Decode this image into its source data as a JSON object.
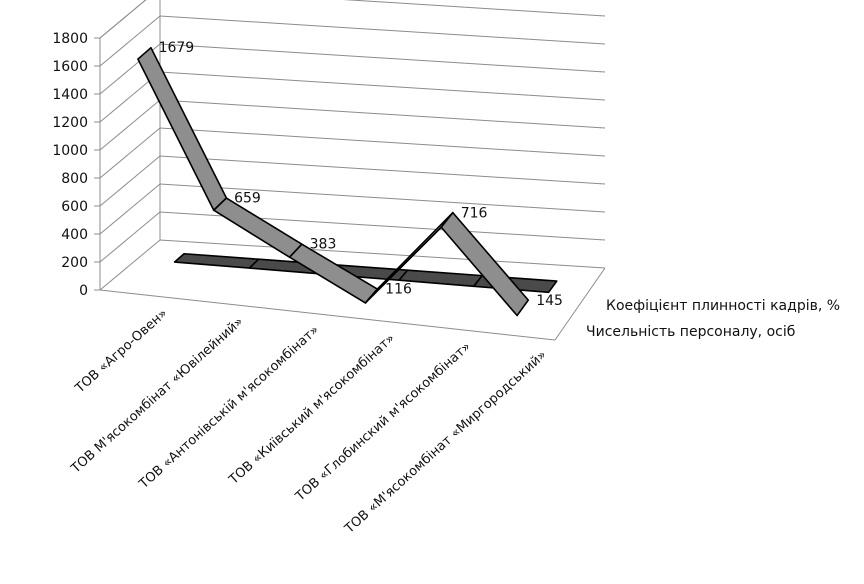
{
  "chart_data": {
    "type": "line",
    "variant": "3d-line",
    "title": "",
    "xlabel": "",
    "ylabel": "",
    "ylim": [
      0,
      1800
    ],
    "y_ticks": [
      0,
      200,
      400,
      600,
      800,
      1000,
      1200,
      1400,
      1600,
      1800
    ],
    "grid": true,
    "legend": "none",
    "categories": [
      "ТОВ «Агро-Овен»",
      "ТОВ  М'ясокомбінат «Ювілейний»",
      "ТОВ «Антонівській м'ясокомбінат»",
      "ТОВ «Київський м'ясокомбінат»",
      "ТОВ «Глобинский м'ясокомбінат»",
      "ТОВ «М'ясокомбінат «Миргородський»"
    ],
    "series": [
      {
        "name": "Коефіцієнт плинності кадрів, %",
        "values": [
          null,
          null,
          null,
          null,
          null,
          null
        ],
        "color": "#4a4a4a"
      },
      {
        "name": "Чисельність персоналу, осіб",
        "values": [
          1679,
          659,
          383,
          116,
          716,
          145
        ],
        "color": "#8e8e8e"
      }
    ]
  }
}
